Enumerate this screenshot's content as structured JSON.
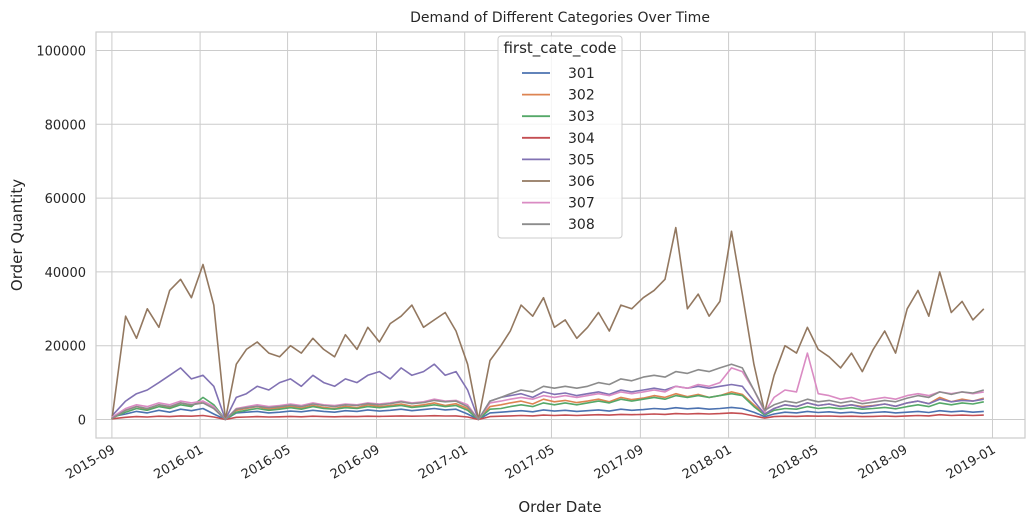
{
  "chart_data": {
    "type": "line",
    "title": "Demand of Different Categories Over Time",
    "xlabel": "Order Date",
    "ylabel": "Order Quantity",
    "x_range": [
      "2015-08-10",
      "2019-02-15"
    ],
    "ylim": [
      -5000,
      105000
    ],
    "x_ticks": [
      "2015-09",
      "2016-01",
      "2016-05",
      "2016-09",
      "2017-01",
      "2017-05",
      "2017-09",
      "2018-01",
      "2018-05",
      "2018-09",
      "2019-01"
    ],
    "x_tick_dates": [
      "2015-09-01",
      "2016-01-01",
      "2016-05-01",
      "2016-09-01",
      "2017-01-01",
      "2017-05-01",
      "2017-09-01",
      "2018-01-01",
      "2018-05-01",
      "2018-09-01",
      "2019-01-01"
    ],
    "y_ticks": [
      0,
      20000,
      40000,
      60000,
      80000,
      100000
    ],
    "grid": true,
    "legend": {
      "title": "first_cate_code",
      "placement": "upper-center"
    },
    "x": [
      "2015-09-01",
      "2015-09-20",
      "2015-10-05",
      "2015-10-20",
      "2015-11-05",
      "2015-11-20",
      "2015-12-05",
      "2015-12-20",
      "2016-01-05",
      "2016-01-20",
      "2016-02-05",
      "2016-02-20",
      "2016-03-05",
      "2016-03-20",
      "2016-04-05",
      "2016-04-20",
      "2016-05-05",
      "2016-05-20",
      "2016-06-05",
      "2016-06-20",
      "2016-07-05",
      "2016-07-20",
      "2016-08-05",
      "2016-08-20",
      "2016-09-05",
      "2016-09-20",
      "2016-10-05",
      "2016-10-20",
      "2016-11-05",
      "2016-11-20",
      "2016-12-05",
      "2016-12-20",
      "2017-01-05",
      "2017-01-20",
      "2017-02-05",
      "2017-02-20",
      "2017-03-05",
      "2017-03-20",
      "2017-04-05",
      "2017-04-20",
      "2017-05-05",
      "2017-05-20",
      "2017-06-05",
      "2017-06-20",
      "2017-07-05",
      "2017-07-20",
      "2017-08-05",
      "2017-08-20",
      "2017-09-05",
      "2017-09-20",
      "2017-10-05",
      "2017-10-20",
      "2017-11-05",
      "2017-11-20",
      "2017-12-05",
      "2017-12-20",
      "2018-01-05",
      "2018-01-20",
      "2018-02-05",
      "2018-02-20",
      "2018-03-05",
      "2018-03-20",
      "2018-04-05",
      "2018-04-20",
      "2018-05-05",
      "2018-05-20",
      "2018-06-05",
      "2018-06-20",
      "2018-07-05",
      "2018-07-20",
      "2018-08-05",
      "2018-08-20",
      "2018-09-05",
      "2018-09-20",
      "2018-10-05",
      "2018-10-20",
      "2018-11-05",
      "2018-11-20",
      "2018-12-05",
      "2018-12-20"
    ],
    "series": [
      {
        "name": "301",
        "color": "#4c72b0",
        "values": [
          800,
          1500,
          2200,
          1800,
          2500,
          2000,
          2800,
          2400,
          3000,
          1500,
          0,
          1800,
          2000,
          2200,
          1800,
          2000,
          2300,
          2100,
          2500,
          2200,
          2000,
          2400,
          2200,
          2600,
          2300,
          2500,
          2800,
          2400,
          2700,
          3000,
          2600,
          2800,
          1500,
          0,
          1800,
          2000,
          2200,
          2400,
          2100,
          2600,
          2300,
          2500,
          2200,
          2400,
          2600,
          2300,
          2800,
          2500,
          2700,
          3000,
          2800,
          3200,
          2900,
          3100,
          2800,
          3000,
          3300,
          3000,
          2000,
          800,
          1500,
          2000,
          1800,
          2200,
          1900,
          2100,
          1800,
          2000,
          1700,
          1900,
          2100,
          1800,
          2000,
          2200,
          1900,
          2400,
          2100,
          2300,
          2000,
          2200
        ]
      },
      {
        "name": "302",
        "color": "#dd8452",
        "values": [
          500,
          2500,
          3500,
          2800,
          4000,
          3200,
          4500,
          3800,
          5000,
          3000,
          0,
          2500,
          3000,
          3500,
          2800,
          3200,
          3600,
          3100,
          3800,
          3300,
          3000,
          3600,
          3200,
          4000,
          3500,
          3800,
          4200,
          3600,
          4000,
          4500,
          3800,
          4300,
          3000,
          0,
          3500,
          4000,
          4500,
          5000,
          4200,
          5500,
          4800,
          5200,
          4600,
          5000,
          5500,
          4800,
          6000,
          5400,
          5800,
          6500,
          6000,
          7000,
          6200,
          6800,
          6000,
          6500,
          7500,
          6800,
          4000,
          1500,
          3000,
          4000,
          3500,
          4500,
          3800,
          4200,
          3600,
          4000,
          3500,
          3800,
          4200,
          3600,
          4500,
          5000,
          4300,
          6000,
          4800,
          5500,
          5000,
          5800
        ]
      },
      {
        "name": "303",
        "color": "#55a868",
        "values": [
          400,
          2000,
          3000,
          2500,
          3500,
          3000,
          4000,
          3500,
          6000,
          4000,
          0,
          2000,
          2500,
          3000,
          2500,
          2800,
          3200,
          2800,
          3500,
          3000,
          2800,
          3200,
          3000,
          3500,
          3200,
          3500,
          3800,
          3300,
          3600,
          4000,
          3500,
          3800,
          2500,
          0,
          2800,
          3000,
          3500,
          4000,
          3500,
          4500,
          4000,
          4500,
          4000,
          4500,
          5000,
          4500,
          5500,
          5000,
          5500,
          6000,
          5500,
          6500,
          6000,
          6500,
          6000,
          6500,
          7000,
          6500,
          3500,
          1200,
          2500,
          3000,
          2800,
          3500,
          3000,
          3300,
          2900,
          3200,
          2800,
          3000,
          3300,
          2900,
          3500,
          4000,
          3500,
          4500,
          4000,
          4500,
          4200,
          4800
        ]
      },
      {
        "name": "304",
        "color": "#c44e52",
        "values": [
          200,
          600,
          800,
          700,
          900,
          800,
          1000,
          900,
          1100,
          700,
          0,
          600,
          700,
          800,
          700,
          750,
          850,
          750,
          900,
          800,
          750,
          850,
          800,
          900,
          850,
          900,
          1000,
          900,
          950,
          1050,
          950,
          1000,
          700,
          0,
          800,
          900,
          1000,
          1100,
          1000,
          1200,
          1100,
          1200,
          1100,
          1200,
          1300,
          1200,
          1400,
          1300,
          1400,
          1500,
          1400,
          1600,
          1500,
          1600,
          1500,
          1600,
          1800,
          1600,
          1000,
          400,
          800,
          900,
          850,
          1000,
          900,
          950,
          850,
          900,
          800,
          850,
          950,
          850,
          1000,
          1100,
          1000,
          1300,
          1100,
          1200,
          1100,
          1200
        ]
      },
      {
        "name": "305",
        "color": "#8172b3",
        "values": [
          1000,
          5000,
          7000,
          8000,
          10000,
          12000,
          14000,
          11000,
          12000,
          9000,
          0,
          6000,
          7000,
          9000,
          8000,
          10000,
          11000,
          9000,
          12000,
          10000,
          9000,
          11000,
          10000,
          12000,
          13000,
          11000,
          14000,
          12000,
          13000,
          15000,
          12000,
          13000,
          8000,
          0,
          5000,
          6000,
          6500,
          7000,
          6000,
          7500,
          6800,
          7200,
          6500,
          7000,
          7500,
          6800,
          8000,
          7500,
          8000,
          8500,
          8000,
          9000,
          8500,
          9000,
          8500,
          9000,
          9500,
          9000,
          5000,
          1500,
          3000,
          4000,
          3500,
          4500,
          3800,
          4200,
          3500,
          4000,
          3300,
          3700,
          4200,
          3600,
          4500,
          5000,
          4300,
          5500,
          4800,
          5200,
          5000,
          5500
        ]
      },
      {
        "name": "306",
        "color": "#937860",
        "values": [
          0,
          28000,
          22000,
          30000,
          25000,
          35000,
          38000,
          33000,
          42000,
          31000,
          0,
          15000,
          19000,
          21000,
          18000,
          17000,
          20000,
          18000,
          22000,
          19000,
          17000,
          23000,
          19000,
          25000,
          21000,
          26000,
          28000,
          31000,
          25000,
          27000,
          29000,
          24000,
          15000,
          0,
          16000,
          20000,
          24000,
          31000,
          28000,
          33000,
          25000,
          27000,
          22000,
          25000,
          29000,
          24000,
          31000,
          30000,
          33000,
          35000,
          38000,
          52000,
          30000,
          34000,
          28000,
          32000,
          51000,
          34000,
          15000,
          2000,
          12000,
          20000,
          18000,
          25000,
          19000,
          17000,
          14000,
          18000,
          13000,
          19000,
          24000,
          18000,
          30000,
          35000,
          28000,
          40000,
          29000,
          32000,
          27000,
          30000
        ]
      },
      {
        "name": "307",
        "color": "#da8bc3",
        "values": [
          600,
          3000,
          4000,
          3500,
          4500,
          4000,
          5000,
          4500,
          5000,
          3500,
          0,
          3000,
          3500,
          4000,
          3500,
          3800,
          4200,
          3800,
          4500,
          4000,
          3800,
          4200,
          4000,
          4500,
          4200,
          4500,
          5000,
          4500,
          4800,
          5500,
          5000,
          5200,
          4000,
          0,
          4500,
          5000,
          5500,
          6000,
          5500,
          6500,
          6000,
          6500,
          6000,
          6500,
          7000,
          6500,
          7500,
          7000,
          7500,
          8000,
          7500,
          9000,
          8500,
          9500,
          9000,
          10000,
          14000,
          13000,
          8000,
          2000,
          6000,
          8000,
          7500,
          18000,
          7000,
          6500,
          5500,
          6000,
          5000,
          5500,
          6000,
          5500,
          6500,
          7000,
          6500,
          7500,
          7000,
          7500,
          7000,
          7500
        ]
      },
      {
        "name": "308",
        "color": "#8c8c8c",
        "values": [
          300,
          2500,
          3500,
          3000,
          4000,
          3500,
          4500,
          4000,
          4500,
          3000,
          0,
          2800,
          3200,
          3600,
          3200,
          3500,
          3900,
          3500,
          4200,
          3800,
          3500,
          4000,
          3800,
          4300,
          4000,
          4300,
          4800,
          4300,
          4600,
          5200,
          4800,
          5000,
          3500,
          0,
          5000,
          6000,
          7000,
          8000,
          7500,
          9000,
          8500,
          9000,
          8500,
          9000,
          10000,
          9500,
          11000,
          10500,
          11500,
          12000,
          11500,
          13000,
          12500,
          13500,
          13000,
          14000,
          15000,
          14000,
          8000,
          2500,
          4000,
          5000,
          4500,
          5500,
          4800,
          5200,
          4500,
          5000,
          4300,
          4700,
          5200,
          4800,
          5800,
          6500,
          6000,
          7500,
          6800,
          7500,
          7200,
          8000
        ]
      }
    ]
  }
}
